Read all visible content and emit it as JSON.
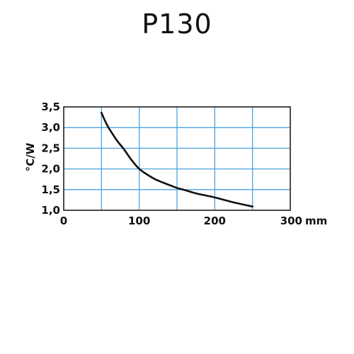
{
  "chart_data": {
    "type": "line",
    "title": "P130",
    "xlabel": "mm",
    "ylabel": "°C/W",
    "xlim": [
      0,
      300
    ],
    "ylim": [
      1.0,
      3.5
    ],
    "x_ticks": [
      "0",
      "100",
      "200",
      "300"
    ],
    "y_ticks": [
      "1,0",
      "1,5",
      "2,0",
      "2,5",
      "3,0",
      "3,5"
    ],
    "grid": true,
    "grid_color": "#4aa3df",
    "line_color": "#111111",
    "series": [
      {
        "x": [
          50,
          55,
          60,
          70,
          80,
          90,
          100,
          110,
          120,
          130,
          140,
          150,
          160,
          175,
          200,
          225,
          250
        ],
        "y": [
          3.36,
          3.15,
          2.98,
          2.7,
          2.47,
          2.21,
          2.0,
          1.87,
          1.76,
          1.68,
          1.61,
          1.54,
          1.49,
          1.41,
          1.31,
          1.19,
          1.09
        ]
      }
    ]
  }
}
